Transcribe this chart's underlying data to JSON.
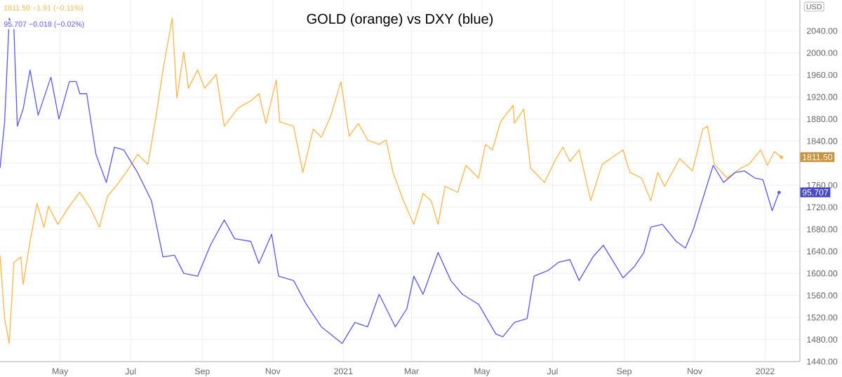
{
  "chart_data": {
    "type": "line",
    "title": "GOLD (orange) vs DXY (blue)",
    "xlim": [
      "2020-03-10",
      "2022-01-31"
    ],
    "xticks": [
      {
        "value": "2020-05-01",
        "label": "May"
      },
      {
        "value": "2020-07-01",
        "label": "Jul"
      },
      {
        "value": "2020-09-01",
        "label": "Sep"
      },
      {
        "value": "2020-11-01",
        "label": "Nov"
      },
      {
        "value": "2021-01-01",
        "label": "2021"
      },
      {
        "value": "2021-03-01",
        "label": "Mar"
      },
      {
        "value": "2021-05-01",
        "label": "May"
      },
      {
        "value": "2021-07-01",
        "label": "Jul"
      },
      {
        "value": "2021-09-01",
        "label": "Sep"
      },
      {
        "value": "2021-11-01",
        "label": "Nov"
      },
      {
        "value": "2022-01-01",
        "label": "2022"
      }
    ],
    "ylim": [
      1440,
      2096
    ],
    "yticks": [
      {
        "value": 1440,
        "label": "1440.00"
      },
      {
        "value": 1480,
        "label": "1480.00"
      },
      {
        "value": 1520,
        "label": "1520.00"
      },
      {
        "value": 1560,
        "label": "1560.00"
      },
      {
        "value": 1600,
        "label": "1600.00"
      },
      {
        "value": 1640,
        "label": "1640.00"
      },
      {
        "value": 1680,
        "label": "1680.00"
      },
      {
        "value": 1720,
        "label": "1720.00"
      },
      {
        "value": 1760,
        "label": "1760.00"
      },
      {
        "value": 1800,
        "label": null
      },
      {
        "value": 1840,
        "label": "1840.00"
      },
      {
        "value": 1880,
        "label": "1880.00"
      },
      {
        "value": 1920,
        "label": "1920.00"
      },
      {
        "value": 1960,
        "label": "1960.00"
      },
      {
        "value": 2000,
        "label": "2000.00"
      },
      {
        "value": 2040,
        "label": "2040.00"
      }
    ],
    "grid": true,
    "marker": "none",
    "line_style": "solid",
    "series": [
      {
        "color": "#ffb74d",
        "x": [
          "2020-03-10",
          "2020-03-14",
          "2020-03-18",
          "2020-03-22",
          "2020-03-28",
          "2020-03-30",
          "2020-04-05",
          "2020-04-11",
          "2020-04-17",
          "2020-04-21",
          "2020-04-29",
          "2020-05-09",
          "2020-05-18",
          "2020-05-27",
          "2020-06-04",
          "2020-06-11",
          "2020-06-19",
          "2020-06-28",
          "2020-07-07",
          "2020-07-16",
          "2020-07-23",
          "2020-07-29",
          "2020-08-06",
          "2020-08-10",
          "2020-08-16",
          "2020-08-20",
          "2020-08-28",
          "2020-09-03",
          "2020-09-13",
          "2020-09-20",
          "2020-10-02",
          "2020-10-13",
          "2020-10-20",
          "2020-10-26",
          "2020-11-04",
          "2020-11-07",
          "2020-11-19",
          "2020-11-27",
          "2020-12-06",
          "2020-12-13",
          "2020-12-21",
          "2020-12-30",
          "2021-01-06",
          "2021-01-14",
          "2021-01-22",
          "2021-02-01",
          "2021-02-07",
          "2021-02-13",
          "2021-02-22",
          "2021-03-03",
          "2021-03-11",
          "2021-03-18",
          "2021-03-24",
          "2021-03-30",
          "2021-04-10",
          "2021-04-17",
          "2021-04-28",
          "2021-05-04",
          "2021-05-10",
          "2021-05-17",
          "2021-05-28",
          "2021-05-29",
          "2021-06-06",
          "2021-06-12",
          "2021-06-24",
          "2021-07-04",
          "2021-07-10",
          "2021-07-16",
          "2021-07-24",
          "2021-08-03",
          "2021-08-13",
          "2021-08-20",
          "2021-08-31",
          "2021-09-06",
          "2021-09-16",
          "2021-09-24",
          "2021-09-30",
          "2021-10-06",
          "2021-10-19",
          "2021-10-30",
          "2021-11-08",
          "2021-11-12",
          "2021-11-18",
          "2021-11-29",
          "2021-12-11",
          "2021-12-18",
          "2021-12-28",
          "2022-01-03",
          "2022-01-09",
          "2022-01-15"
        ],
        "values": [
          1633,
          1518,
          1473,
          1620,
          1630,
          1580,
          1658,
          1727,
          1684,
          1722,
          1689,
          1722,
          1747,
          1719,
          1684,
          1740,
          1760,
          1786,
          1816,
          1798,
          1885,
          1969,
          2063,
          1918,
          2002,
          1936,
          1969,
          1936,
          1961,
          1867,
          1900,
          1913,
          1926,
          1872,
          1951,
          1875,
          1867,
          1783,
          1862,
          1847,
          1885,
          1948,
          1849,
          1872,
          1842,
          1834,
          1842,
          1783,
          1732,
          1689,
          1745,
          1732,
          1689,
          1758,
          1747,
          1796,
          1773,
          1834,
          1824,
          1875,
          1905,
          1872,
          1898,
          1791,
          1765,
          1808,
          1829,
          1803,
          1824,
          1732,
          1798,
          1808,
          1824,
          1783,
          1773,
          1732,
          1783,
          1758,
          1808,
          1786,
          1862,
          1867,
          1798,
          1773,
          1791,
          1798,
          1824,
          1796,
          1821,
          1811
        ]
      },
      {
        "color": "#5b5bf5",
        "x": [
          "2020-03-10",
          "2020-03-14",
          "2020-03-18",
          "2020-03-22",
          "2020-03-25",
          "2020-03-30",
          "2020-04-05",
          "2020-04-12",
          "2020-04-23",
          "2020-04-30",
          "2020-05-09",
          "2020-05-15",
          "2020-05-18",
          "2020-05-24",
          "2020-06-01",
          "2020-06-10",
          "2020-06-17",
          "2020-06-25",
          "2020-07-07",
          "2020-07-19",
          "2020-07-29",
          "2020-08-08",
          "2020-08-16",
          "2020-08-28",
          "2020-09-08",
          "2020-09-20",
          "2020-09-29",
          "2020-10-13",
          "2020-10-20",
          "2020-10-31",
          "2020-11-06",
          "2020-11-19",
          "2020-11-30",
          "2020-12-13",
          "2020-12-31",
          "2021-01-11",
          "2021-01-22",
          "2021-02-01",
          "2021-02-15",
          "2021-02-25",
          "2021-03-03",
          "2021-03-11",
          "2021-03-24",
          "2021-04-04",
          "2021-04-14",
          "2021-04-28",
          "2021-05-13",
          "2021-05-19",
          "2021-05-29",
          "2021-06-09",
          "2021-06-15",
          "2021-06-27",
          "2021-07-06",
          "2021-07-16",
          "2021-07-24",
          "2021-08-05",
          "2021-08-14",
          "2021-08-25",
          "2021-08-31",
          "2021-09-10",
          "2021-09-18",
          "2021-09-24",
          "2021-10-04",
          "2021-10-16",
          "2021-10-24",
          "2021-10-31",
          "2021-11-06",
          "2021-11-17",
          "2021-11-26",
          "2021-12-06",
          "2021-12-14",
          "2021-12-23",
          "2021-12-30",
          "2022-01-07",
          "2022-01-13"
        ],
        "values": [
          1791,
          1875,
          2063,
          2045,
          1867,
          1898,
          1969,
          1887,
          1956,
          1880,
          1948,
          1948,
          1926,
          1926,
          1816,
          1765,
          1829,
          1824,
          1783,
          1732,
          1630,
          1633,
          1600,
          1595,
          1651,
          1697,
          1663,
          1658,
          1618,
          1671,
          1595,
          1587,
          1544,
          1503,
          1473,
          1511,
          1503,
          1562,
          1503,
          1536,
          1595,
          1562,
          1638,
          1587,
          1562,
          1544,
          1490,
          1485,
          1511,
          1518,
          1595,
          1605,
          1620,
          1625,
          1587,
          1630,
          1651,
          1613,
          1592,
          1613,
          1638,
          1684,
          1689,
          1658,
          1646,
          1681,
          1722,
          1796,
          1765,
          1783,
          1786,
          1773,
          1770,
          1714,
          1747
        ]
      }
    ],
    "annotations": [
      "1811.50 −1.91 (−0.11%)",
      "95.707 −0.018 (−0.02%)",
      "USD",
      {
        "text": "1811.50",
        "x": "2022-01-15",
        "y": 1811
      },
      {
        "text": "95.707",
        "x": "2022-01-13",
        "y": 1747
      }
    ]
  }
}
